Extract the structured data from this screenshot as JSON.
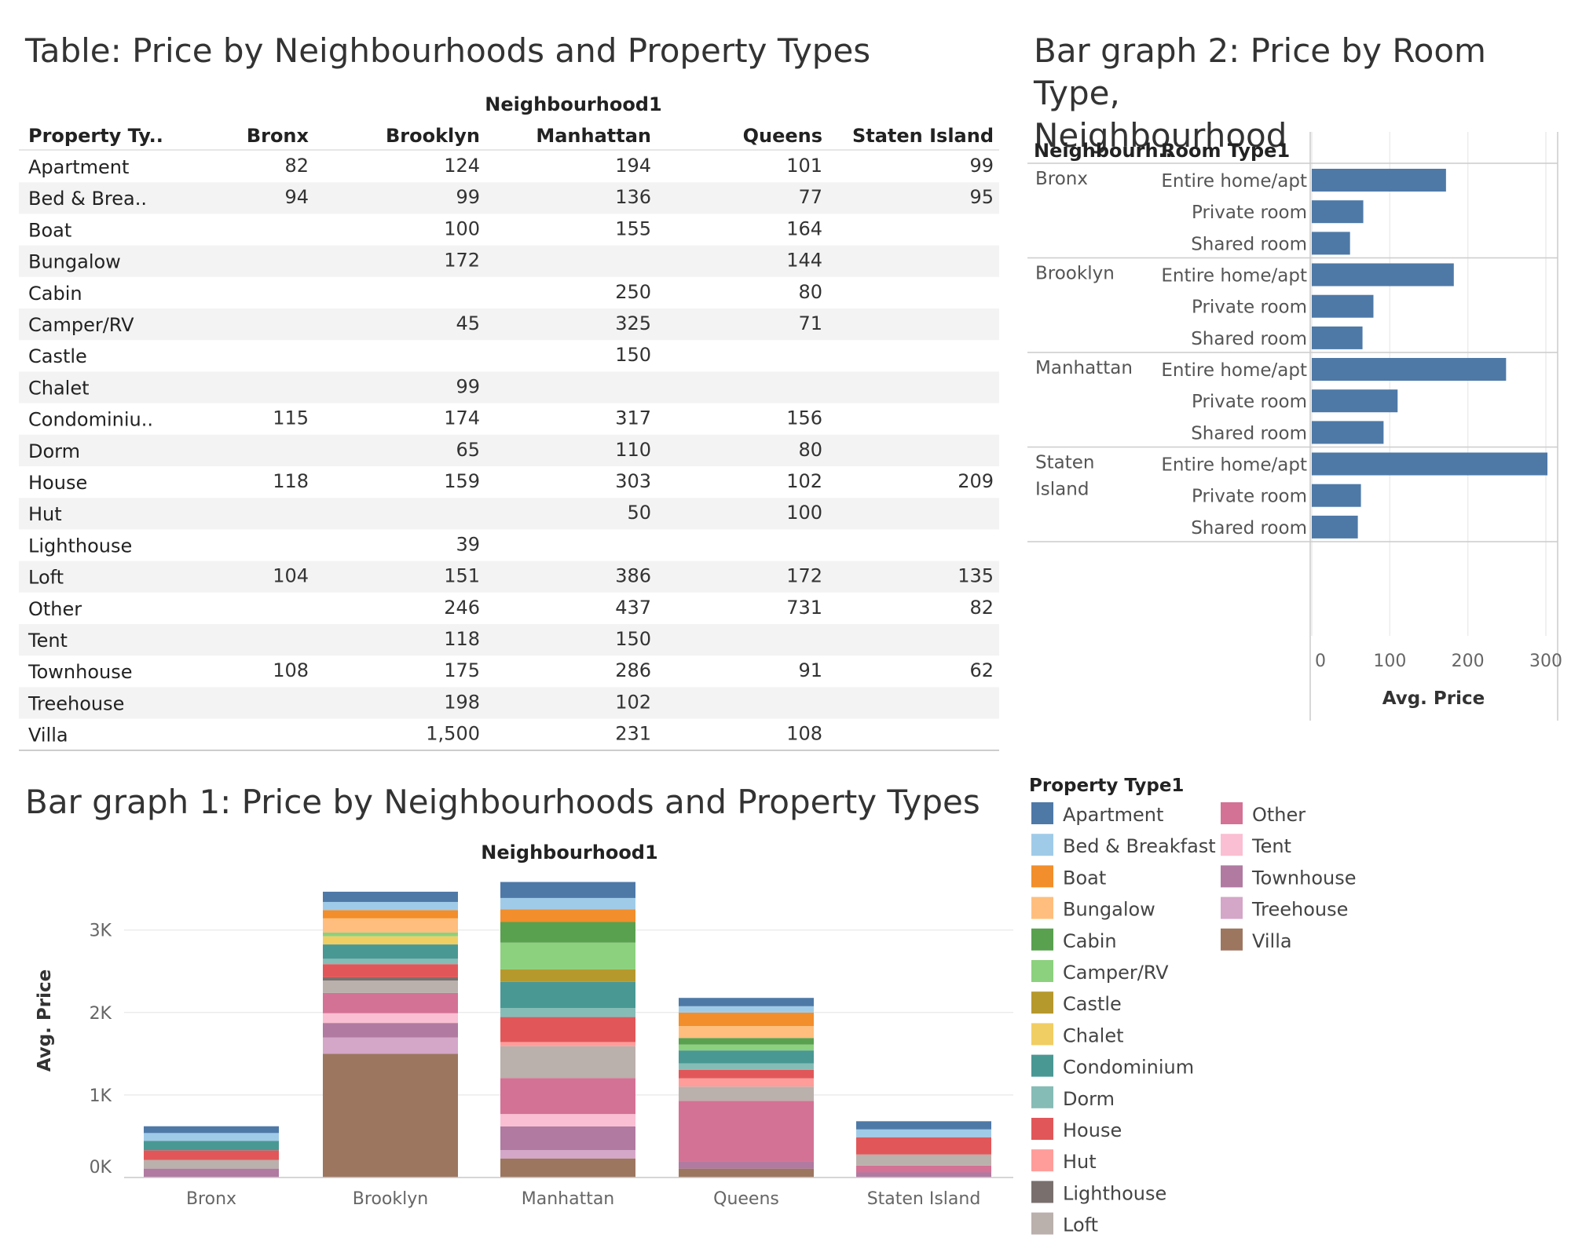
{
  "titles": {
    "table": "Table: Price by Neighbourhoods and Property Types",
    "bar2_line1": "Bar graph 2: Price by Room Type,",
    "bar2_line2": "Neighbourhood",
    "bar1": "Bar graph 1: Price by Neighbourhoods and Property Types"
  },
  "table": {
    "column_group_header": "Neighbourhood1",
    "row_header": "Property Ty..",
    "columns": [
      "Bronx",
      "Brooklyn",
      "Manhattan",
      "Queens",
      "Staten Island"
    ],
    "rows": [
      {
        "label": "Apartment",
        "values": [
          "82",
          "124",
          "194",
          "101",
          "99"
        ]
      },
      {
        "label": "Bed & Brea..",
        "values": [
          "94",
          "99",
          "136",
          "77",
          "95"
        ]
      },
      {
        "label": "Boat",
        "values": [
          "",
          "100",
          "155",
          "164",
          ""
        ]
      },
      {
        "label": "Bungalow",
        "values": [
          "",
          "172",
          "",
          "144",
          ""
        ]
      },
      {
        "label": "Cabin",
        "values": [
          "",
          "",
          "250",
          "80",
          ""
        ]
      },
      {
        "label": "Camper/RV",
        "values": [
          "",
          "45",
          "325",
          "71",
          ""
        ]
      },
      {
        "label": "Castle",
        "values": [
          "",
          "",
          "150",
          "",
          ""
        ]
      },
      {
        "label": "Chalet",
        "values": [
          "",
          "99",
          "",
          "",
          ""
        ]
      },
      {
        "label": "Condominiu..",
        "values": [
          "115",
          "174",
          "317",
          "156",
          ""
        ]
      },
      {
        "label": "Dorm",
        "values": [
          "",
          "65",
          "110",
          "80",
          ""
        ]
      },
      {
        "label": "House",
        "values": [
          "118",
          "159",
          "303",
          "102",
          "209"
        ]
      },
      {
        "label": "Hut",
        "values": [
          "",
          "",
          "50",
          "100",
          ""
        ]
      },
      {
        "label": "Lighthouse",
        "values": [
          "",
          "39",
          "",
          "",
          ""
        ]
      },
      {
        "label": "Loft",
        "values": [
          "104",
          "151",
          "386",
          "172",
          "135"
        ]
      },
      {
        "label": "Other",
        "values": [
          "",
          "246",
          "437",
          "731",
          "82"
        ]
      },
      {
        "label": "Tent",
        "values": [
          "",
          "118",
          "150",
          "",
          ""
        ]
      },
      {
        "label": "Townhouse",
        "values": [
          "108",
          "175",
          "286",
          "91",
          "62"
        ]
      },
      {
        "label": "Treehouse",
        "values": [
          "",
          "198",
          "102",
          "",
          ""
        ]
      },
      {
        "label": "Villa",
        "values": [
          "",
          "1,500",
          "231",
          "108",
          ""
        ]
      }
    ]
  },
  "chart_data": [
    {
      "type": "bar",
      "orientation": "horizontal",
      "title": "Bar graph 2: Price by Room Type, Neighbourhood",
      "row_headers": [
        "Neighbourh..",
        "Room Type1"
      ],
      "groups": [
        {
          "neighbourhood": "Bronx",
          "rooms": [
            {
              "room": "Entire home/apt",
              "value": 172
            },
            {
              "room": "Private room",
              "value": 66
            },
            {
              "room": "Shared room",
              "value": 49
            }
          ]
        },
        {
          "neighbourhood": "Brooklyn",
          "rooms": [
            {
              "room": "Entire home/apt",
              "value": 182
            },
            {
              "room": "Private room",
              "value": 79
            },
            {
              "room": "Shared room",
              "value": 65
            }
          ]
        },
        {
          "neighbourhood": "Manhattan",
          "rooms": [
            {
              "room": "Entire home/apt",
              "value": 249
            },
            {
              "room": "Private room",
              "value": 110
            },
            {
              "room": "Shared room",
              "value": 92
            }
          ]
        },
        {
          "neighbourhood": "Staten Island",
          "rooms": [
            {
              "room": "Entire home/apt",
              "value": 302
            },
            {
              "room": "Private room",
              "value": 63
            },
            {
              "room": "Shared room",
              "value": 59
            }
          ]
        }
      ],
      "xlabel": "Avg. Price",
      "xticks": [
        "0",
        "100",
        "200",
        "300"
      ],
      "xlim": [
        0,
        316
      ],
      "bar_color": "#4e79a7",
      "grid": true
    },
    {
      "type": "bar",
      "stacked": true,
      "title": "Bar graph 1: Price by Neighbourhoods and Property Types",
      "column_header": "Neighbourhood1",
      "categories": [
        "Bronx",
        "Brooklyn",
        "Manhattan",
        "Queens",
        "Staten Island"
      ],
      "ylabel": "Avg. Price",
      "yticks": [
        "0K",
        "1K",
        "2K",
        "3K"
      ],
      "ylim": [
        0,
        3600
      ],
      "grid": true,
      "legend_position": "right",
      "series": [
        {
          "name": "Apartment",
          "values": [
            82,
            124,
            194,
            101,
            99
          ]
        },
        {
          "name": "Bed & Breakfast",
          "values": [
            94,
            99,
            136,
            77,
            95
          ]
        },
        {
          "name": "Boat",
          "values": [
            0,
            100,
            155,
            164,
            0
          ]
        },
        {
          "name": "Bungalow",
          "values": [
            0,
            172,
            0,
            144,
            0
          ]
        },
        {
          "name": "Cabin",
          "values": [
            0,
            0,
            250,
            80,
            0
          ]
        },
        {
          "name": "Camper/RV",
          "values": [
            0,
            45,
            325,
            71,
            0
          ]
        },
        {
          "name": "Castle",
          "values": [
            0,
            0,
            150,
            0,
            0
          ]
        },
        {
          "name": "Chalet",
          "values": [
            0,
            99,
            0,
            0,
            0
          ]
        },
        {
          "name": "Condominium",
          "values": [
            115,
            174,
            317,
            156,
            0
          ]
        },
        {
          "name": "Dorm",
          "values": [
            0,
            65,
            110,
            80,
            0
          ]
        },
        {
          "name": "House",
          "values": [
            118,
            159,
            303,
            102,
            209
          ]
        },
        {
          "name": "Hut",
          "values": [
            0,
            0,
            50,
            100,
            0
          ]
        },
        {
          "name": "Lighthouse",
          "values": [
            0,
            39,
            0,
            0,
            0
          ]
        },
        {
          "name": "Loft",
          "values": [
            104,
            151,
            386,
            172,
            135
          ]
        },
        {
          "name": "Other",
          "values": [
            0,
            246,
            437,
            731,
            82
          ]
        },
        {
          "name": "Tent",
          "values": [
            0,
            118,
            150,
            0,
            0
          ]
        },
        {
          "name": "Townhouse",
          "values": [
            108,
            175,
            286,
            91,
            62
          ]
        },
        {
          "name": "Treehouse",
          "values": [
            0,
            198,
            102,
            0,
            0
          ]
        },
        {
          "name": "Villa",
          "values": [
            0,
            1500,
            231,
            108,
            0
          ]
        }
      ]
    }
  ],
  "legend": {
    "title": "Property Type1",
    "items": [
      {
        "name": "Apartment",
        "color": "#4e79a7"
      },
      {
        "name": "Bed & Breakfast",
        "color": "#a0cbe8"
      },
      {
        "name": "Boat",
        "color": "#f28e2b"
      },
      {
        "name": "Bungalow",
        "color": "#ffbe7d"
      },
      {
        "name": "Cabin",
        "color": "#59a14f"
      },
      {
        "name": "Camper/RV",
        "color": "#8cd17d"
      },
      {
        "name": "Castle",
        "color": "#b6992d"
      },
      {
        "name": "Chalet",
        "color": "#f1ce63"
      },
      {
        "name": "Condominium",
        "color": "#499894"
      },
      {
        "name": "Dorm",
        "color": "#86bcb6"
      },
      {
        "name": "House",
        "color": "#e15759"
      },
      {
        "name": "Hut",
        "color": "#ff9d9a"
      },
      {
        "name": "Lighthouse",
        "color": "#79706e"
      },
      {
        "name": "Loft",
        "color": "#bab0ac"
      },
      {
        "name": "Other",
        "color": "#d37295"
      },
      {
        "name": "Tent",
        "color": "#fabfd2"
      },
      {
        "name": "Townhouse",
        "color": "#b07aa1"
      },
      {
        "name": "Treehouse",
        "color": "#d4a6c8"
      },
      {
        "name": "Villa",
        "color": "#9d7660"
      }
    ]
  }
}
